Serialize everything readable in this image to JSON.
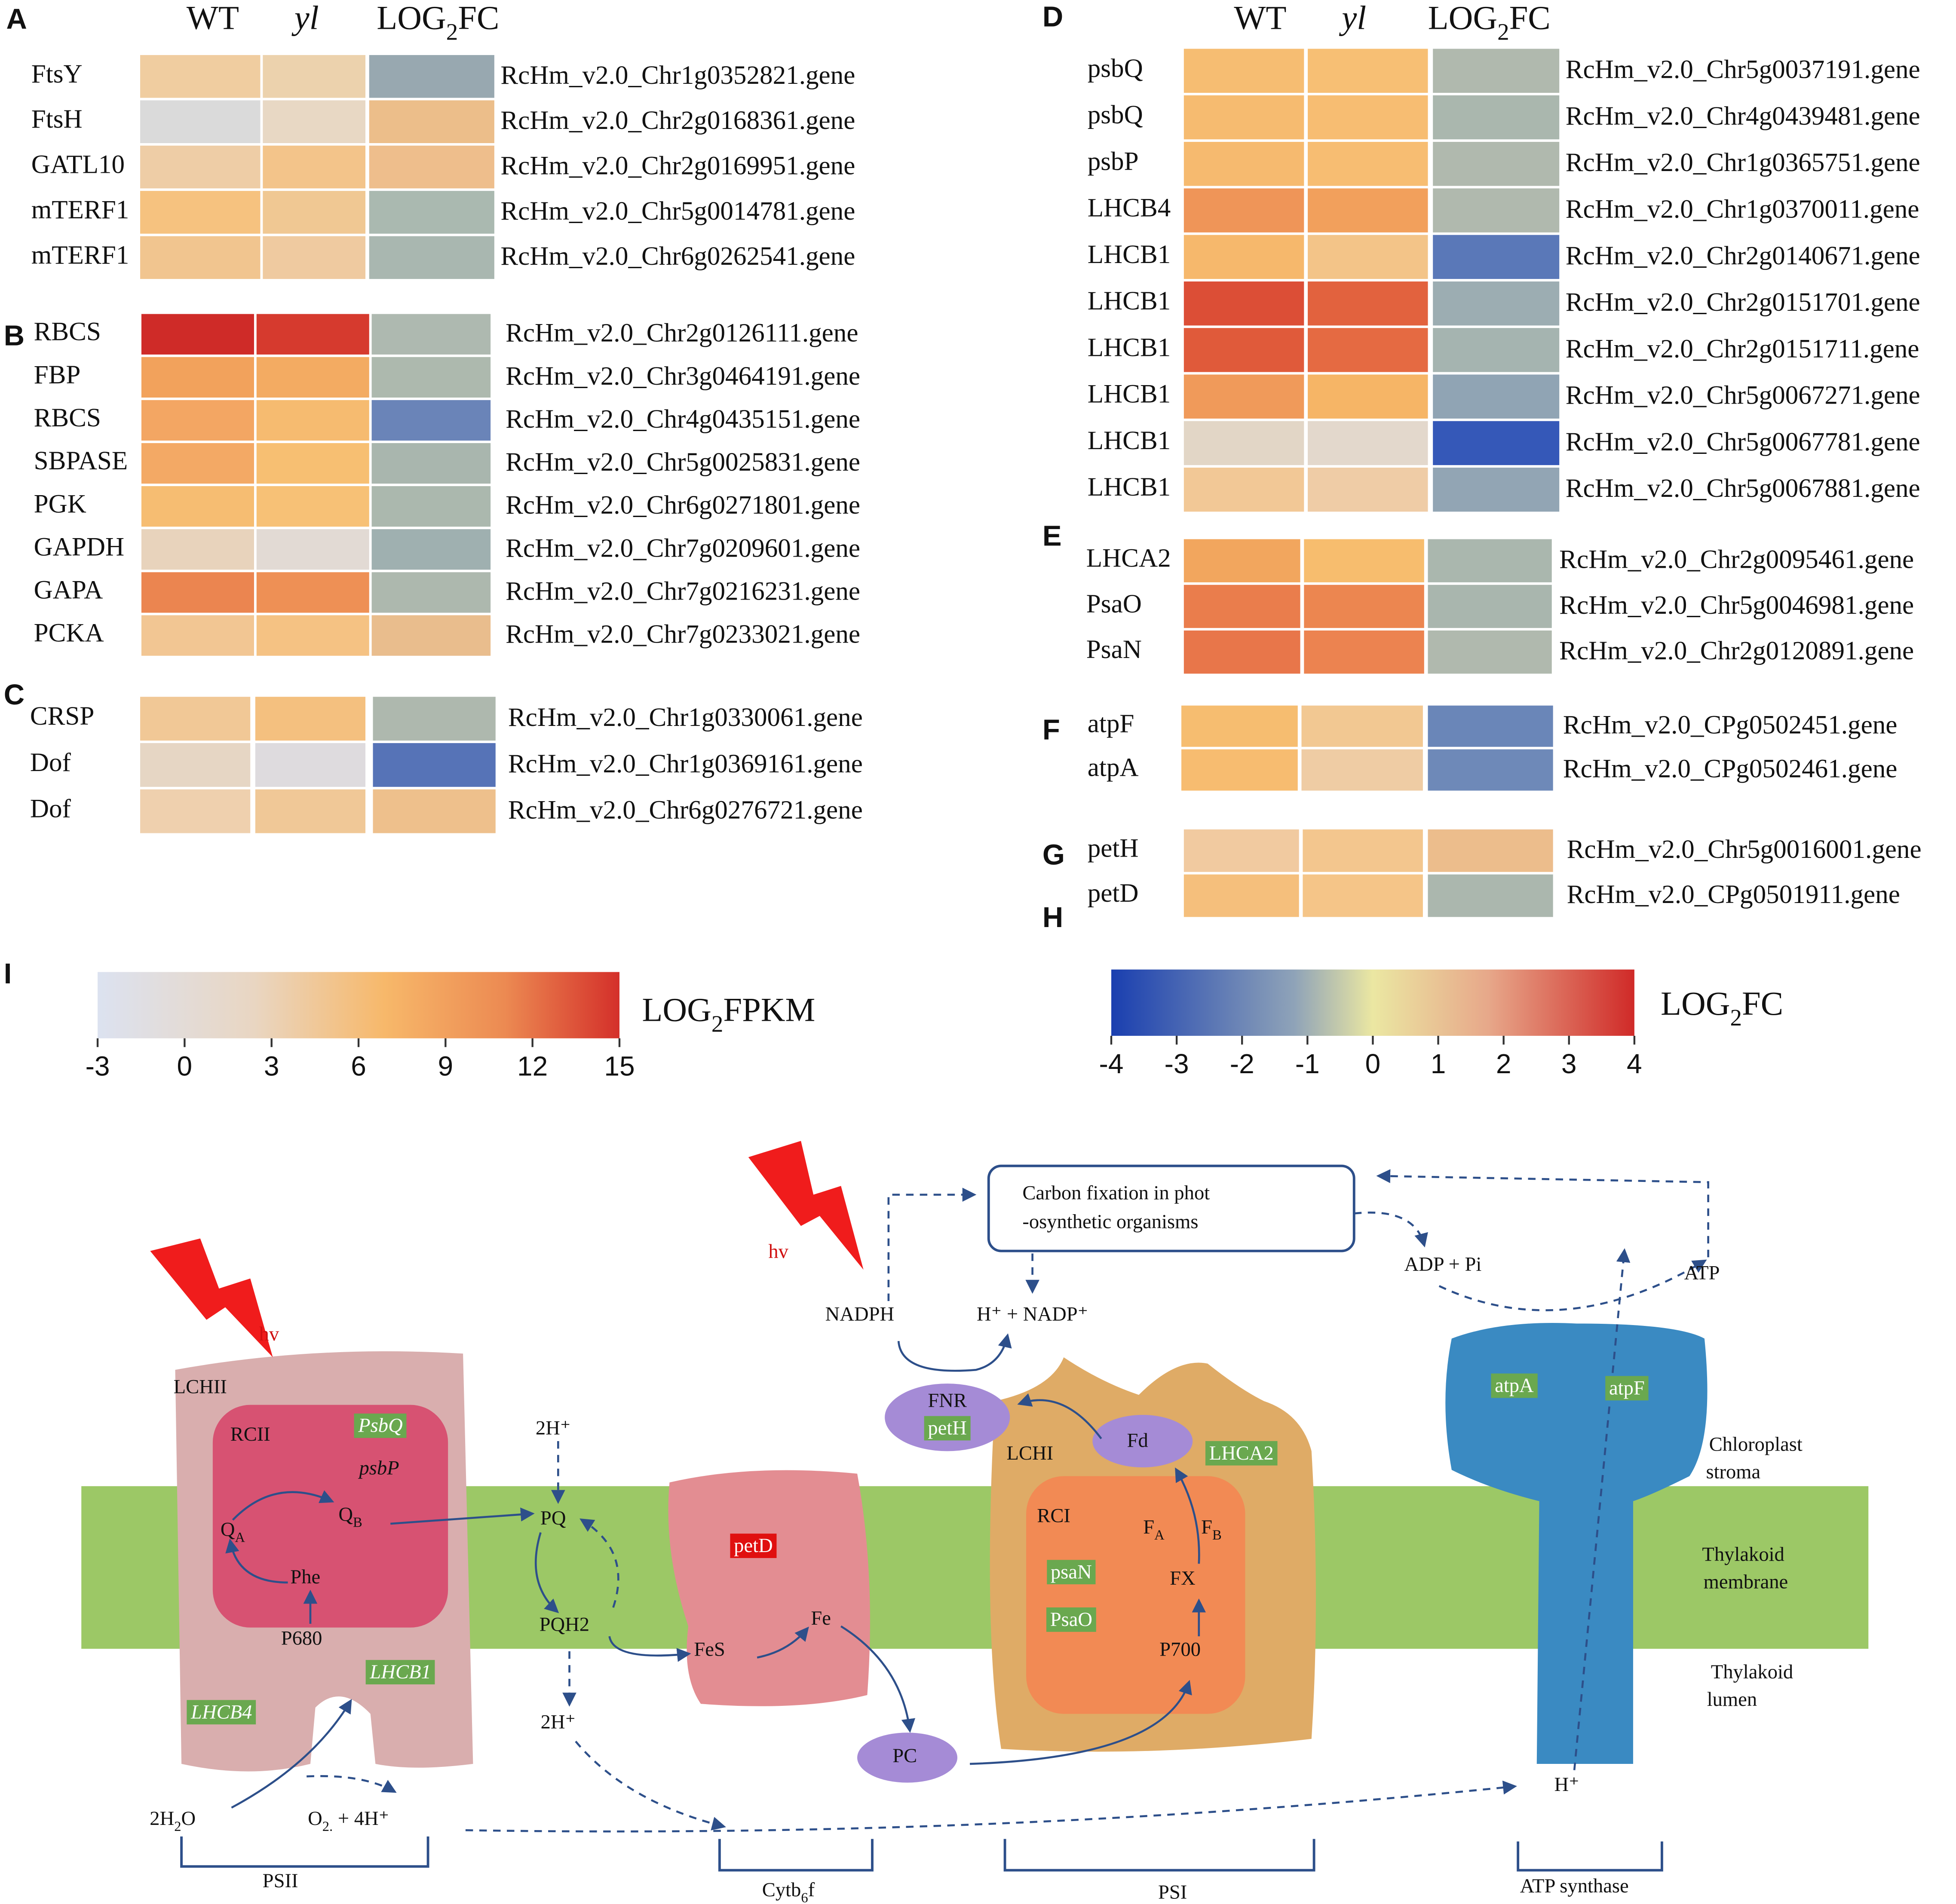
{
  "panels": [
    {
      "labels": [
        "A"
      ],
      "headers": [
        "WT",
        "yl",
        {
          "t": "LOG",
          "s": "2",
          "r": "FC"
        }
      ],
      "rows": [
        {
          "name": "FtsY",
          "id": "RcHm_v2.0_Chr1g0352821.gene",
          "colors": [
            "#f0cda0",
            "#ecd2ad",
            "#98a8b0"
          ]
        },
        {
          "name": "FtsH",
          "id": "RcHm_v2.0_Chr2g0168361.gene",
          "colors": [
            "#dadada",
            "#e8d8c4",
            "#ecbe8a"
          ]
        },
        {
          "name": "GATL10",
          "id": "RcHm_v2.0_Chr2g0169951.gene",
          "colors": [
            "#eecda6",
            "#f3c48a",
            "#eebe8c"
          ]
        },
        {
          "name": "mTERF1",
          "id": "RcHm_v2.0_Chr5g0014781.gene",
          "colors": [
            "#f6c27f",
            "#f0c893",
            "#aab9b0"
          ]
        },
        {
          "name": "mTERF1",
          "id": "RcHm_v2.0_Chr6g0262541.gene",
          "colors": [
            "#f1c58f",
            "#efcaa0",
            "#a9b7b0"
          ]
        }
      ]
    },
    {
      "labels": [
        "B"
      ],
      "rows": [
        {
          "name": "RBCS",
          "id": "RcHm_v2.0_Chr2g0126111.gene",
          "colors": [
            "#cf2b28",
            "#d63a2e",
            "#aeb9b0"
          ]
        },
        {
          "name": "FBP",
          "id": "RcHm_v2.0_Chr3g0464191.gene",
          "colors": [
            "#f2a25c",
            "#f3ab62",
            "#adb9ae"
          ]
        },
        {
          "name": "RBCS",
          "id": "RcHm_v2.0_Chr4g0435151.gene",
          "colors": [
            "#f3a663",
            "#f6bb70",
            "#6a84b8"
          ]
        },
        {
          "name": "SBPASE",
          "id": "RcHm_v2.0_Chr5g0025831.gene",
          "colors": [
            "#f3a965",
            "#f7bf72",
            "#a9b6ae"
          ]
        },
        {
          "name": "PGK",
          "id": "RcHm_v2.0_Chr6g0271801.gene",
          "colors": [
            "#f6bd72",
            "#f7c176",
            "#abb8ae"
          ]
        },
        {
          "name": "GAPDH",
          "id": "RcHm_v2.0_Chr7g0209601.gene",
          "colors": [
            "#e8d3bc",
            "#e2dad4",
            "#9fb0b0"
          ]
        },
        {
          "name": "GAPA",
          "id": "RcHm_v2.0_Chr7g0216231.gene",
          "colors": [
            "#eb8550",
            "#ee9055",
            "#adb8ae"
          ]
        },
        {
          "name": "PCKA",
          "id": "RcHm_v2.0_Chr7g0233021.gene",
          "colors": [
            "#f2c693",
            "#f5c283",
            "#e9bd8d"
          ]
        }
      ]
    },
    {
      "labels": [
        "C"
      ],
      "rows": [
        {
          "name": "CRSP",
          "id": "RcHm_v2.0_Chr1g0330061.gene",
          "colors": [
            "#f1c896",
            "#f4c07f",
            "#aeb8ae"
          ]
        },
        {
          "name": "Dof",
          "id": "RcHm_v2.0_Chr1g0369161.gene",
          "colors": [
            "#e6d6c4",
            "#dedbde",
            "#5673b7"
          ]
        },
        {
          "name": "Dof",
          "id": "RcHm_v2.0_Chr6g0276721.gene",
          "colors": [
            "#efd0ae",
            "#f0c897",
            "#eec08c"
          ]
        }
      ]
    },
    {
      "labels": [
        "D"
      ],
      "headers": [
        "WT",
        "yl",
        {
          "t": "LOG",
          "s": "2",
          "r": "FC"
        }
      ],
      "rows": [
        {
          "name": "psbQ",
          "id": "RcHm_v2.0_Chr5g0037191.gene",
          "colors": [
            "#f6bd72",
            "#f7bf74",
            "#b0b9ae"
          ]
        },
        {
          "name": "psbQ",
          "id": "RcHm_v2.0_Chr4g0439481.gene",
          "colors": [
            "#f6bb70",
            "#f7bd72",
            "#aab7ae"
          ]
        },
        {
          "name": "psbP",
          "id": "RcHm_v2.0_Chr1g0365751.gene",
          "colors": [
            "#f6ba6f",
            "#f7bd72",
            "#b0b9ae"
          ]
        },
        {
          "name": "LHCB4",
          "id": "RcHm_v2.0_Chr1g0370011.gene",
          "colors": [
            "#ef9558",
            "#f2a05c",
            "#b0b9ae"
          ]
        },
        {
          "name": "LHCB1",
          "id": "RcHm_v2.0_Chr2g0140671.gene",
          "colors": [
            "#f6b86c",
            "#f3c488",
            "#5a78b8"
          ]
        },
        {
          "name": "LHCB1",
          "id": "RcHm_v2.0_Chr2g0151701.gene",
          "colors": [
            "#dc4e36",
            "#e2623e",
            "#9cadb2"
          ]
        },
        {
          "name": "LHCB1",
          "id": "RcHm_v2.0_Chr2g0151711.gene",
          "colors": [
            "#e05a3a",
            "#e56a42",
            "#a5b4b0"
          ]
        },
        {
          "name": "LHCB1",
          "id": "RcHm_v2.0_Chr5g0067271.gene",
          "colors": [
            "#f09a5a",
            "#f6b566",
            "#90a4b4"
          ]
        },
        {
          "name": "LHCB1",
          "id": "RcHm_v2.0_Chr5g0067781.gene",
          "colors": [
            "#e2d6c6",
            "#e3d8cc",
            "#3558b8"
          ]
        },
        {
          "name": "LHCB1",
          "id": "RcHm_v2.0_Chr5g0067881.gene",
          "colors": [
            "#f2c896",
            "#efcca6",
            "#92a5b4"
          ]
        }
      ]
    },
    {
      "labels": [
        "E"
      ],
      "rows": [
        {
          "name": "LHCA2",
          "id": "RcHm_v2.0_Chr2g0095461.gene",
          "colors": [
            "#f2a65e",
            "#f7bd6e",
            "#aab7ae"
          ]
        },
        {
          "name": "PsaO",
          "id": "RcHm_v2.0_Chr5g0046981.gene",
          "colors": [
            "#ea7d4c",
            "#ec8650",
            "#a9b6ae"
          ]
        },
        {
          "name": "PsaN",
          "id": "RcHm_v2.0_Chr2g0120891.gene",
          "colors": [
            "#e8764a",
            "#ec8350",
            "#b0b9ae"
          ]
        }
      ]
    },
    {
      "labels": [
        "F"
      ],
      "rows": [
        {
          "name": "atpF",
          "id": "RcHm_v2.0_CPg0502451.gene",
          "colors": [
            "#f6bd70",
            "#f2c892",
            "#6a86b8"
          ]
        },
        {
          "name": "atpA",
          "id": "RcHm_v2.0_CPg0502461.gene",
          "colors": [
            "#f7bc70",
            "#efcca4",
            "#6e89b8"
          ]
        }
      ]
    },
    {
      "labels": [
        "G",
        "H"
      ],
      "rows": [
        {
          "name": "petH",
          "id": "RcHm_v2.0_Chr5g0016001.gene",
          "colors": [
            "#f1caa0",
            "#f3c68e",
            "#ecbd8c"
          ]
        },
        {
          "name": "petD",
          "id": "RcHm_v2.0_CPg0501911.gene",
          "colors": [
            "#f5bf7c",
            "#f5c588",
            "#abb7ae"
          ]
        }
      ]
    }
  ],
  "scale_panel": "I",
  "scales": [
    {
      "label": {
        "t": "LOG",
        "s": "2",
        "r": "FPKM"
      },
      "ticks": [
        -3,
        0,
        3,
        6,
        9,
        12,
        15
      ]
    },
    {
      "label": {
        "t": "LOG",
        "s": "2",
        "r": "FC"
      },
      "ticks": [
        -4,
        -3,
        -2,
        -1,
        0,
        1,
        2,
        3,
        4
      ]
    }
  ],
  "diagram": {
    "labels": [
      "Carbon fixation in phot",
      "-osynthetic organisms",
      "hv",
      "NADPH",
      "H⁺  +  NADP⁺",
      "ADP  +  Pi",
      "ATP",
      "hv",
      "LCHII",
      "RCII",
      "PsbQ",
      "psbP",
      "Phe",
      "P680",
      "LHCB1",
      "LHCB4",
      "PQ",
      "PQH2",
      "FeS",
      "Fe",
      "petD",
      "PC",
      "FNR",
      "petH",
      "Fd",
      "LHCA2",
      "LCHI",
      "RCI",
      "psaN",
      "PsaO",
      "FX",
      "P700",
      "atpA",
      "atpF",
      "Chloroplast",
      "stroma",
      "Thylakoid",
      "membrane",
      "Thylakoid",
      "lumen",
      "H⁺",
      "PSII",
      "PSI",
      "ATP synthase",
      "2H⁺",
      "2H⁺"
    ],
    "sub": [
      {
        "t": "Q",
        "s": "A"
      },
      {
        "t": "Q",
        "s": "B"
      },
      {
        "t": "F",
        "s": "A"
      },
      {
        "t": "F",
        "s": "B"
      },
      {
        "t": "2H",
        "s": "2",
        "r": "O"
      },
      {
        "t": "O",
        "s": "2.",
        "r": "  +  4H⁺"
      },
      {
        "t": "Cytb",
        "s": "6",
        "r": "f"
      }
    ]
  }
}
